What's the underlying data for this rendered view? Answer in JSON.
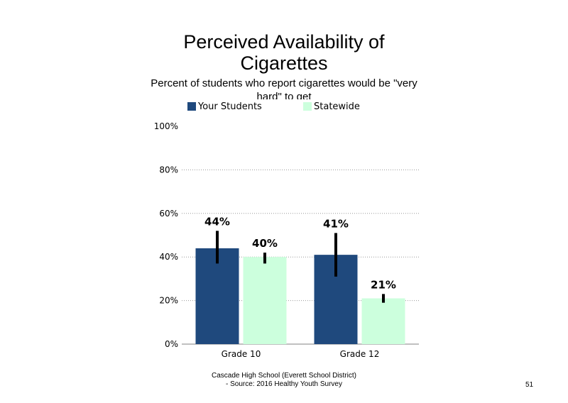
{
  "chart_data": {
    "type": "bar",
    "title": "Perceived Availability of Cigarettes",
    "subtitle": "Percent of students who report cigarettes would be \"very hard\" to get",
    "categories": [
      "Grade 10",
      "Grade 12"
    ],
    "series": [
      {
        "name": "Your Students",
        "values": [
          44,
          41
        ],
        "labels": [
          "44%",
          "41%"
        ],
        "error": [
          [
            37,
            52
          ],
          [
            31,
            51
          ]
        ],
        "color": "#1f497d"
      },
      {
        "name": "Statewide",
        "values": [
          40,
          21
        ],
        "labels": [
          "40%",
          "21%"
        ],
        "error": [
          [
            37,
            42
          ],
          [
            19,
            23
          ]
        ],
        "color": "#ccffdd"
      }
    ],
    "ylim": [
      0,
      100
    ],
    "yticks": [
      0,
      20,
      40,
      60,
      80,
      100
    ],
    "ytick_labels": [
      "0%",
      "20%",
      "40%",
      "60%",
      "80%",
      "100%"
    ],
    "grid": true,
    "legend": "top"
  },
  "footer": {
    "line1": "Cascade High School (Everett School District)",
    "line2": "- Source: 2016 Healthy Youth Survey"
  },
  "page_number": "51"
}
